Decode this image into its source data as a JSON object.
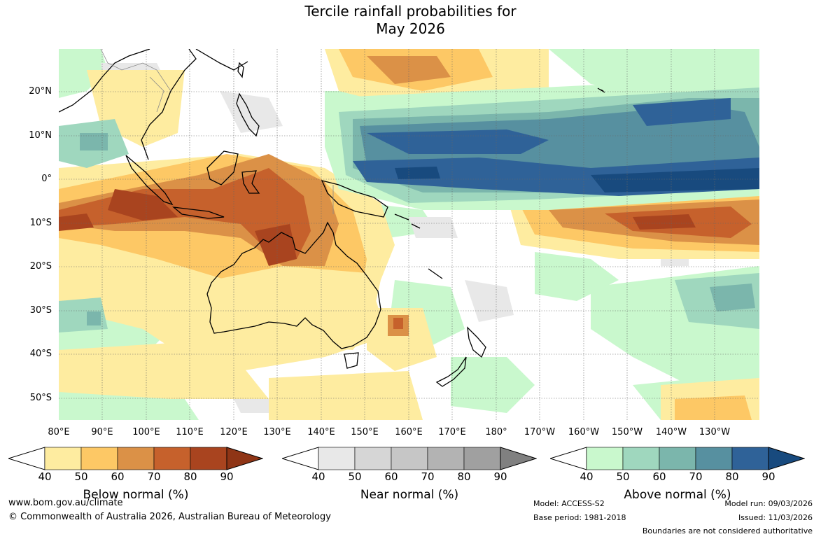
{
  "title_line1": "Tercile rainfall probabilities for",
  "title_line2": "May 2026",
  "lat_labels": [
    "20°N",
    "10°N",
    "0°",
    "10°S",
    "20°S",
    "30°S",
    "40°S",
    "50°S"
  ],
  "lon_labels": [
    "80°E",
    "90°E",
    "100°E",
    "110°E",
    "120°E",
    "130°E",
    "140°E",
    "150°E",
    "160°E",
    "170°E",
    "180°",
    "170°W",
    "160°W",
    "150°W",
    "140°W",
    "130°W"
  ],
  "colorbars": [
    {
      "title": "Below normal (%)",
      "ticks": [
        "40",
        "50",
        "60",
        "70",
        "80",
        "90"
      ],
      "colors": [
        "#ffffff",
        "#feeca0",
        "#fdc865",
        "#db9147",
        "#c6612c",
        "#a9441f",
        "#8f3516"
      ]
    },
    {
      "title": "Near normal (%)",
      "ticks": [
        "40",
        "50",
        "60",
        "70",
        "80",
        "90"
      ],
      "colors": [
        "#ffffff",
        "#e8e8e8",
        "#d6d6d6",
        "#c6c6c6",
        "#b3b3b3",
        "#a0a0a0",
        "#808080"
      ]
    },
    {
      "title": "Above normal (%)",
      "ticks": [
        "40",
        "50",
        "60",
        "70",
        "80",
        "90"
      ],
      "colors": [
        "#ffffff",
        "#c9f8cd",
        "#9fd7be",
        "#7bb6ac",
        "#5790a0",
        "#2f6298",
        "#184a7e"
      ]
    }
  ],
  "footer": {
    "website": "www.bom.gov.au/climate",
    "copyright": "© Commonwealth of Australia 2026, Australian Bureau of Meteorology",
    "model": "Model: ACCESS-S2",
    "base_period": "Base period: 1981-2018",
    "model_run": "Model run: 09/03/2026",
    "issued": "Issued: 11/03/2026",
    "disclaimer": "Boundaries are not considered authoritative"
  },
  "map_colors": {
    "below_1": "#feeca0",
    "below_2": "#fdc865",
    "below_3": "#db9147",
    "below_4": "#c6612c",
    "below_5": "#a9441f",
    "near_1": "#e8e8e8",
    "above_1": "#c9f8cd",
    "above_2": "#9fd7be",
    "above_3": "#7bb6ac",
    "above_4": "#5790a0",
    "above_5": "#2f6298",
    "above_6": "#184a7e"
  }
}
